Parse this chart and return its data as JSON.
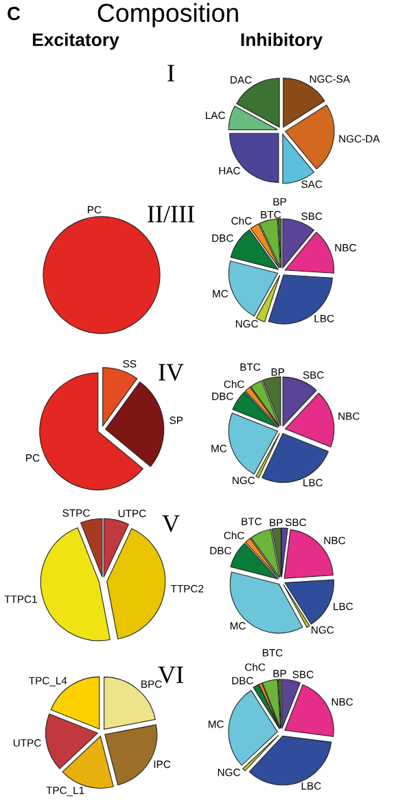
{
  "chart_data": [
    {
      "type": "pie",
      "title": "I",
      "annotations": [
        "C",
        "Composition",
        "Excitatory",
        "Inhibitory"
      ],
      "categories": [
        "NGC-SA",
        "NGC-DA",
        "SAC",
        "HAC",
        "LAC",
        "DAC"
      ],
      "values": [
        16,
        23,
        11,
        25,
        8,
        17
      ],
      "colors": [
        "#8b4c17",
        "#d2691e",
        "#5bc0dc",
        "#4a4597",
        "#6abb7f",
        "#3c7232"
      ]
    },
    {
      "type": "pie",
      "categories": [
        "PC"
      ],
      "values": [
        100
      ],
      "colors": [
        "#e32722"
      ]
    },
    {
      "type": "pie",
      "title": "II/III",
      "categories": [
        "SBC",
        "NBC",
        "LBC",
        "NGC",
        "MC",
        "DBC",
        "ChC",
        "BTC",
        "BP"
      ],
      "values": [
        11,
        15,
        29,
        3,
        21,
        11,
        3,
        6,
        1
      ],
      "colors": [
        "#5a4497",
        "#e52d8a",
        "#2f4d9a",
        "#b9cf2e",
        "#6cc5d9",
        "#0a7c3a",
        "#f28a1c",
        "#6db43a",
        "#4b7031"
      ]
    },
    {
      "type": "pie",
      "categories": [
        "SS",
        "SP",
        "PC"
      ],
      "values": [
        10,
        26,
        64
      ],
      "colors": [
        "#e44d1f",
        "#7e1614",
        "#e32722"
      ]
    },
    {
      "type": "pie",
      "title": "IV",
      "categories": [
        "SBC",
        "NBC",
        "LBC",
        "NGC",
        "MC",
        "DBC",
        "ChC",
        "BTC",
        "BP"
      ],
      "values": [
        12,
        19,
        26,
        1,
        23,
        7,
        2,
        4,
        6
      ],
      "colors": [
        "#5a4497",
        "#e52d8a",
        "#2f4d9a",
        "#b9cf2e",
        "#6cc5d9",
        "#0a7c3a",
        "#f28a1c",
        "#6db43a",
        "#4b7031"
      ]
    },
    {
      "type": "pie",
      "categories": [
        "UTPC",
        "TTPC2",
        "TTPC1",
        "STPC"
      ],
      "values": [
        7,
        40,
        47,
        6
      ],
      "colors": [
        "#c1383e",
        "#e8c500",
        "#efe313",
        "#a83a24"
      ]
    },
    {
      "type": "pie",
      "title": "V",
      "categories": [
        "SBC",
        "NBC",
        "LBC",
        "NGC",
        "MC",
        "DBC",
        "ChC",
        "BTC",
        "BP"
      ],
      "values": [
        2,
        22,
        17,
        1,
        37,
        9,
        2,
        7,
        3
      ],
      "colors": [
        "#5a4497",
        "#e52d8a",
        "#2f4d9a",
        "#b9cf2e",
        "#6cc5d9",
        "#0a7c3a",
        "#f28a1c",
        "#6db43a",
        "#4b7031"
      ]
    },
    {
      "type": "pie",
      "categories": [
        "BPC",
        "IPC",
        "TPC_L1",
        "UTPC",
        "TPC_L4"
      ],
      "values": [
        22,
        24,
        17,
        18,
        19
      ],
      "colors": [
        "#ede48a",
        "#9b6f27",
        "#e8b00e",
        "#c1383e",
        "#fdd000"
      ]
    },
    {
      "type": "pie",
      "title": "VI",
      "categories": [
        "SBC",
        "NBC",
        "LBC",
        "NGC",
        "MC",
        "DBC",
        "ChC",
        "BTC",
        "BP"
      ],
      "values": [
        6,
        21,
        35,
        1,
        28,
        2,
        1,
        5,
        1
      ],
      "colors": [
        "#5a4497",
        "#e52d8a",
        "#2f4d9a",
        "#b9cf2e",
        "#6cc5d9",
        "#0a7c3a",
        "#f28a1c",
        "#6db43a",
        "#4b7031"
      ]
    }
  ]
}
